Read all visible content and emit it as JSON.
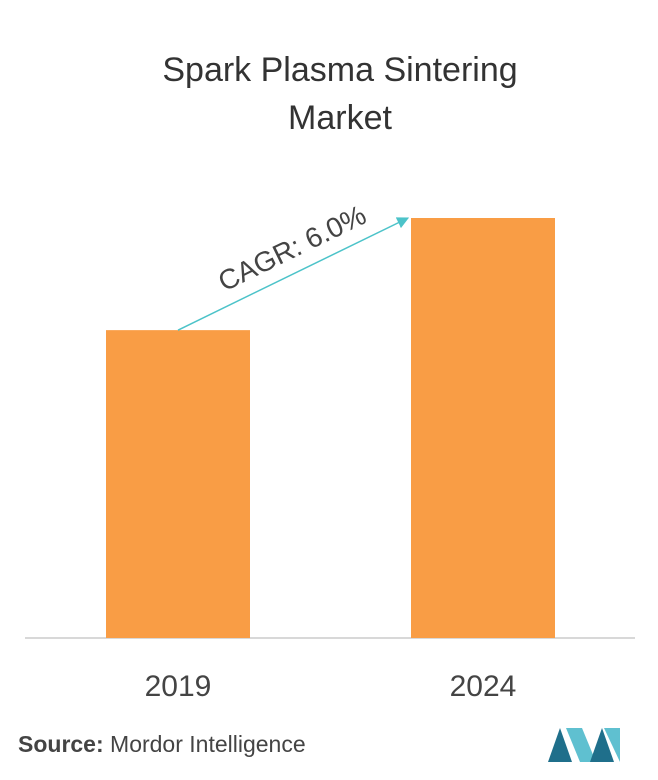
{
  "chart_data": {
    "type": "bar",
    "title": "Spark Plasma Sintering Market",
    "categories": [
      "2019",
      "2024"
    ],
    "values": [
      73.3,
      100
    ],
    "color": "#f99d45",
    "ylim": [
      0,
      100
    ],
    "annotation": "CAGR: 6.0%",
    "annotation_color": "#4cc3c9",
    "source_label": "Source:",
    "source": "Mordor Intelligence"
  }
}
